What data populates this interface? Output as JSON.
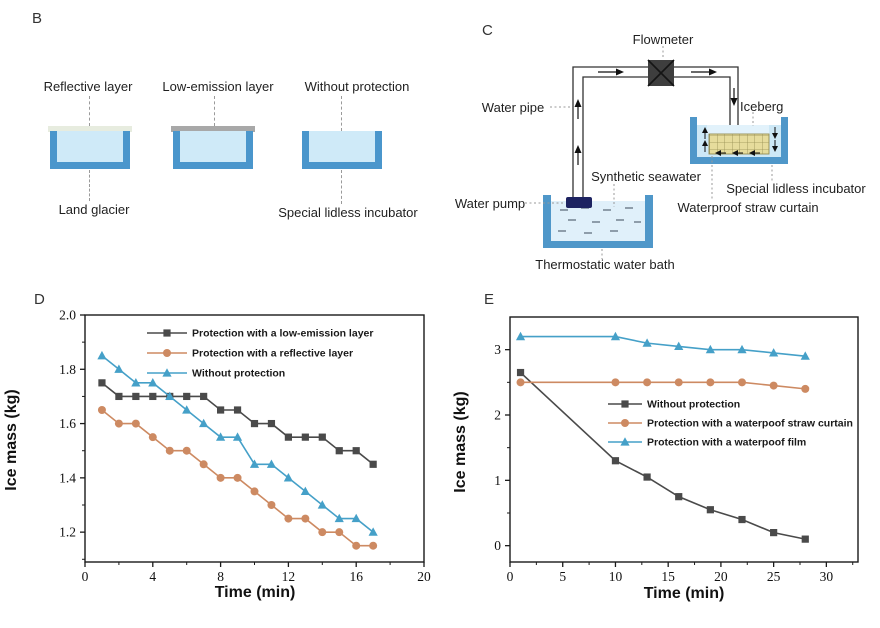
{
  "panel_b": {
    "letter": "B",
    "setups": [
      {
        "label": "Reflective layer"
      },
      {
        "label": "Low-emission layer"
      },
      {
        "label": "Without protection"
      }
    ],
    "land_glacier_label": "Land glacier",
    "incubator_label": "Special lidless incubator",
    "colors": {
      "vessel_wall": "#4a96cc",
      "vessel_water": "#cfeaf8",
      "reflective_layer": "#e7ecdf",
      "low_emission_layer": "#a8a8a8"
    }
  },
  "panel_c": {
    "letter": "C",
    "labels": {
      "flowmeter": "Flowmeter",
      "water_pipe": "Water pipe",
      "iceberg": "Iceberg",
      "synthetic_seawater": "Synthetic seawater",
      "water_pump": "Water pump",
      "special_lidless_incubator": "Special lidless incubator",
      "waterproof_straw_curtain": "Waterproof straw curtain",
      "thermostatic_water_bath": "Thermostatic water bath"
    },
    "colors": {
      "basin_wall": "#4f97c9",
      "basin_water": "#e0f0fa",
      "incubator_water": "#cde8f6",
      "ice": "#e2f2fb",
      "straw": "#e6dc9c",
      "pump": "#1d2361",
      "flowmeter_box": "#3e3e3e"
    }
  },
  "chart_data": [
    {
      "id": "D",
      "type": "line",
      "title": "",
      "xlabel": "Time (min)",
      "ylabel": "Ice mass (kg)",
      "xlim": [
        0,
        20
      ],
      "ylim": [
        1.09,
        2.0
      ],
      "xticks": [
        0,
        4,
        8,
        12,
        16,
        20
      ],
      "xtick_labels": [
        "0",
        "4",
        "8",
        "12",
        "16",
        "20"
      ],
      "yticks": [
        1.2,
        1.4,
        1.6,
        1.8,
        2.0
      ],
      "ytick_labels": [
        "1.2",
        "1.4",
        "1.6",
        "1.8",
        "2.0"
      ],
      "grid": false,
      "legend_position": "top-center-inside",
      "x": [
        1,
        2,
        3,
        4,
        5,
        6,
        7,
        8,
        9,
        10,
        11,
        12,
        13,
        14,
        15,
        16,
        17
      ],
      "series": [
        {
          "name": "Protection with a low-emission layer",
          "marker": "square",
          "color": "#4a4a4a",
          "values": [
            1.75,
            1.7,
            1.7,
            1.7,
            1.7,
            1.7,
            1.7,
            1.65,
            1.65,
            1.6,
            1.6,
            1.55,
            1.55,
            1.55,
            1.5,
            1.5,
            1.45
          ]
        },
        {
          "name": "Protection with a reflective layer",
          "marker": "circle",
          "color": "#cd8a62",
          "values": [
            1.65,
            1.6,
            1.6,
            1.55,
            1.5,
            1.5,
            1.45,
            1.4,
            1.4,
            1.35,
            1.3,
            1.25,
            1.25,
            1.2,
            1.2,
            1.15,
            1.15
          ]
        },
        {
          "name": "Without protection",
          "marker": "triangle",
          "color": "#45a0c8",
          "values": [
            1.85,
            1.8,
            1.75,
            1.75,
            1.7,
            1.65,
            1.6,
            1.55,
            1.55,
            1.45,
            1.45,
            1.4,
            1.35,
            1.3,
            1.25,
            1.25,
            1.2
          ]
        }
      ]
    },
    {
      "id": "E",
      "type": "line",
      "title": "",
      "xlabel": "Time (min)",
      "ylabel": "Ice mass (kg)",
      "xlim": [
        0,
        33
      ],
      "ylim": [
        -0.25,
        3.5
      ],
      "xticks": [
        0,
        5,
        10,
        15,
        20,
        25,
        30
      ],
      "xtick_labels": [
        "0",
        "5",
        "10",
        "15",
        "20",
        "25",
        "30"
      ],
      "yticks": [
        0,
        1,
        2,
        3
      ],
      "ytick_labels": [
        "0",
        "1",
        "2",
        "3"
      ],
      "grid": false,
      "legend_position": "middle-right-inside",
      "x": [
        1,
        10,
        13,
        16,
        19,
        22,
        25,
        28
      ],
      "series": [
        {
          "name": "Without protection",
          "marker": "square",
          "color": "#4a4a4a",
          "values": [
            2.65,
            1.3,
            1.05,
            0.75,
            0.55,
            0.4,
            0.2,
            0.1
          ]
        },
        {
          "name": "Protection with a waterpoof straw curtain",
          "marker": "circle",
          "color": "#cd8a62",
          "values": [
            2.5,
            2.5,
            2.5,
            2.5,
            2.5,
            2.5,
            2.45,
            2.4
          ]
        },
        {
          "name": "Protection with a waterpoof film",
          "marker": "triangle",
          "color": "#45a0c8",
          "values": [
            3.2,
            3.2,
            3.1,
            3.05,
            3.0,
            3.0,
            2.95,
            2.9
          ]
        }
      ]
    }
  ]
}
